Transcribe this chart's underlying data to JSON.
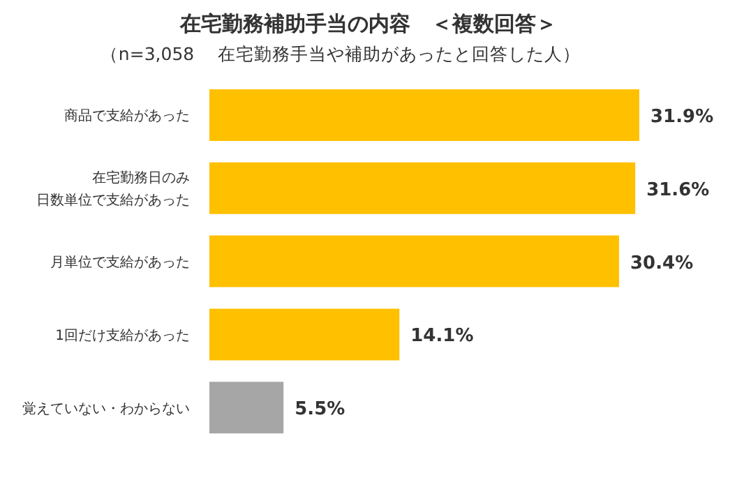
{
  "chart_data": {
    "type": "bar",
    "orientation": "horizontal",
    "title": "在宅勤務補助手当の内容　＜複数回答＞",
    "subtitle": "（n=3,058　 在宅勤務手当や補助があったと回答した人）",
    "categories": [
      "商品で支給があった",
      "在宅勤務日のみ日数単位で支給があった",
      "月単位で支給があった",
      "1回だけ支給があった",
      "覚えていない・わからない"
    ],
    "values": [
      31.9,
      31.6,
      30.4,
      14.1,
      5.5
    ],
    "value_labels": [
      "31.9%",
      "31.6%",
      "30.4%",
      "14.1%",
      "5.5%"
    ],
    "colors": [
      "#ffc000",
      "#ffc000",
      "#ffc000",
      "#ffc000",
      "#a6a6a6"
    ],
    "grid": false,
    "legend": false
  }
}
